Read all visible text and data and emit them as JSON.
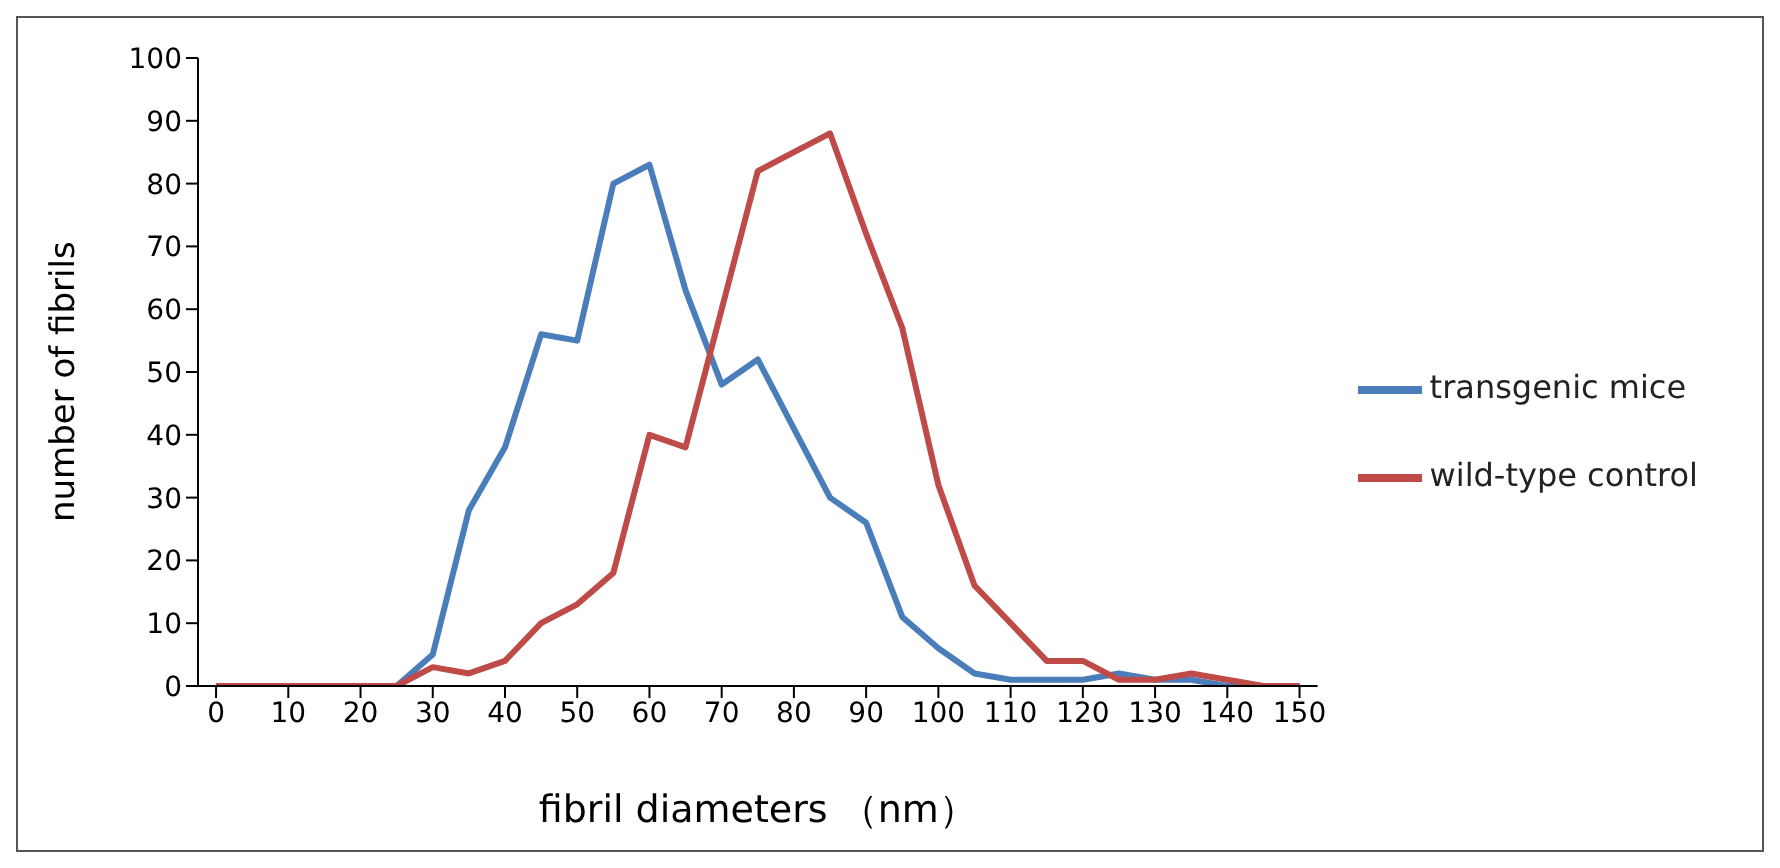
{
  "chart_data": {
    "type": "line",
    "xlabel": "fibril diameters （nm）",
    "ylabel": "number of fibrils",
    "x": [
      0,
      5,
      10,
      15,
      20,
      25,
      30,
      35,
      40,
      45,
      50,
      55,
      60,
      65,
      70,
      75,
      80,
      85,
      90,
      95,
      100,
      105,
      110,
      115,
      120,
      125,
      130,
      135,
      140,
      145,
      150
    ],
    "xlim": [
      -2.5,
      152.5
    ],
    "xticks": [
      0,
      10,
      20,
      30,
      40,
      50,
      60,
      70,
      80,
      90,
      100,
      110,
      120,
      130,
      140,
      150
    ],
    "ylim": [
      0,
      100
    ],
    "yticks": [
      0,
      10,
      20,
      30,
      40,
      50,
      60,
      70,
      80,
      90,
      100
    ],
    "series": [
      {
        "name": "transgenic mice",
        "color": "#4a7ebb",
        "values": [
          null,
          null,
          null,
          null,
          0,
          0,
          5,
          28,
          38,
          56,
          55,
          80,
          83,
          63,
          48,
          52,
          41,
          30,
          26,
          11,
          6,
          2,
          1,
          1,
          1,
          2,
          1,
          1,
          0,
          0,
          0
        ]
      },
      {
        "name": "wild-type control",
        "color": "#be4b48",
        "values": [
          0,
          0,
          0,
          0,
          0,
          0,
          3,
          2,
          4,
          10,
          13,
          18,
          40,
          38,
          60,
          82,
          85,
          88,
          72,
          57,
          32,
          16,
          10,
          4,
          4,
          1,
          1,
          2,
          1,
          0,
          0
        ]
      }
    ],
    "legend": "right",
    "grid": false,
    "marker": "none",
    "line_style": "solid"
  }
}
